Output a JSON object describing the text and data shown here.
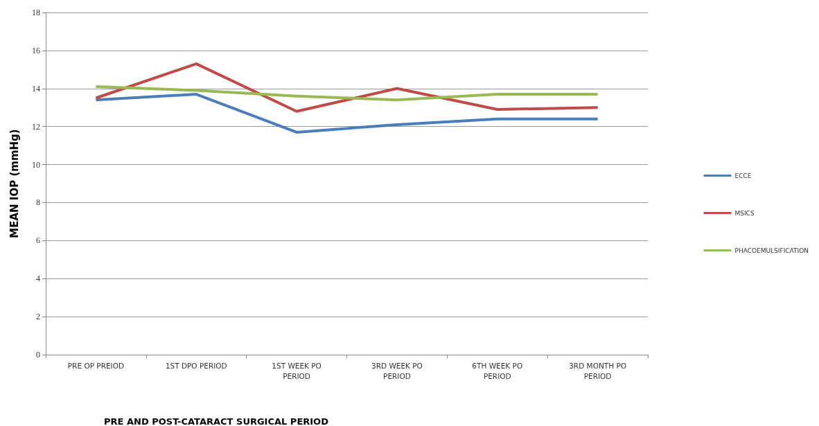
{
  "chart_data": {
    "type": "line",
    "xlabel": "PRE AND POST-CATARACT SURGICAL PERIOD",
    "ylabel": "MEAN IOP (mmHg)",
    "categories": [
      "PRE OP PREIOD",
      "1ST DPO PERIOD",
      "1ST WEEK PO\nPERIOD",
      "3RD WEEK PO\nPERIOD",
      "6TH WEEK PO\nPERIOD",
      "3RD MONTH PO\nPERIOD"
    ],
    "series": [
      {
        "name": "ECCE",
        "color": "#4a7ebb",
        "values": [
          13.4,
          13.7,
          11.7,
          12.1,
          12.4,
          12.4
        ]
      },
      {
        "name": "MSICS",
        "color": "#be4b48",
        "values": [
          13.5,
          15.3,
          12.8,
          14.0,
          12.9,
          13.0
        ]
      },
      {
        "name": "PHACOEMULSIFICATION",
        "color": "#98b954",
        "values": [
          14.1,
          13.9,
          13.6,
          13.4,
          13.7,
          13.7
        ]
      }
    ],
    "ylim": [
      0,
      18
    ],
    "yticks": [
      0,
      2,
      4,
      6,
      8,
      10,
      12,
      14,
      16,
      18
    ],
    "grid": "y",
    "legend": "right",
    "marker": "none",
    "line_style": "solid"
  }
}
